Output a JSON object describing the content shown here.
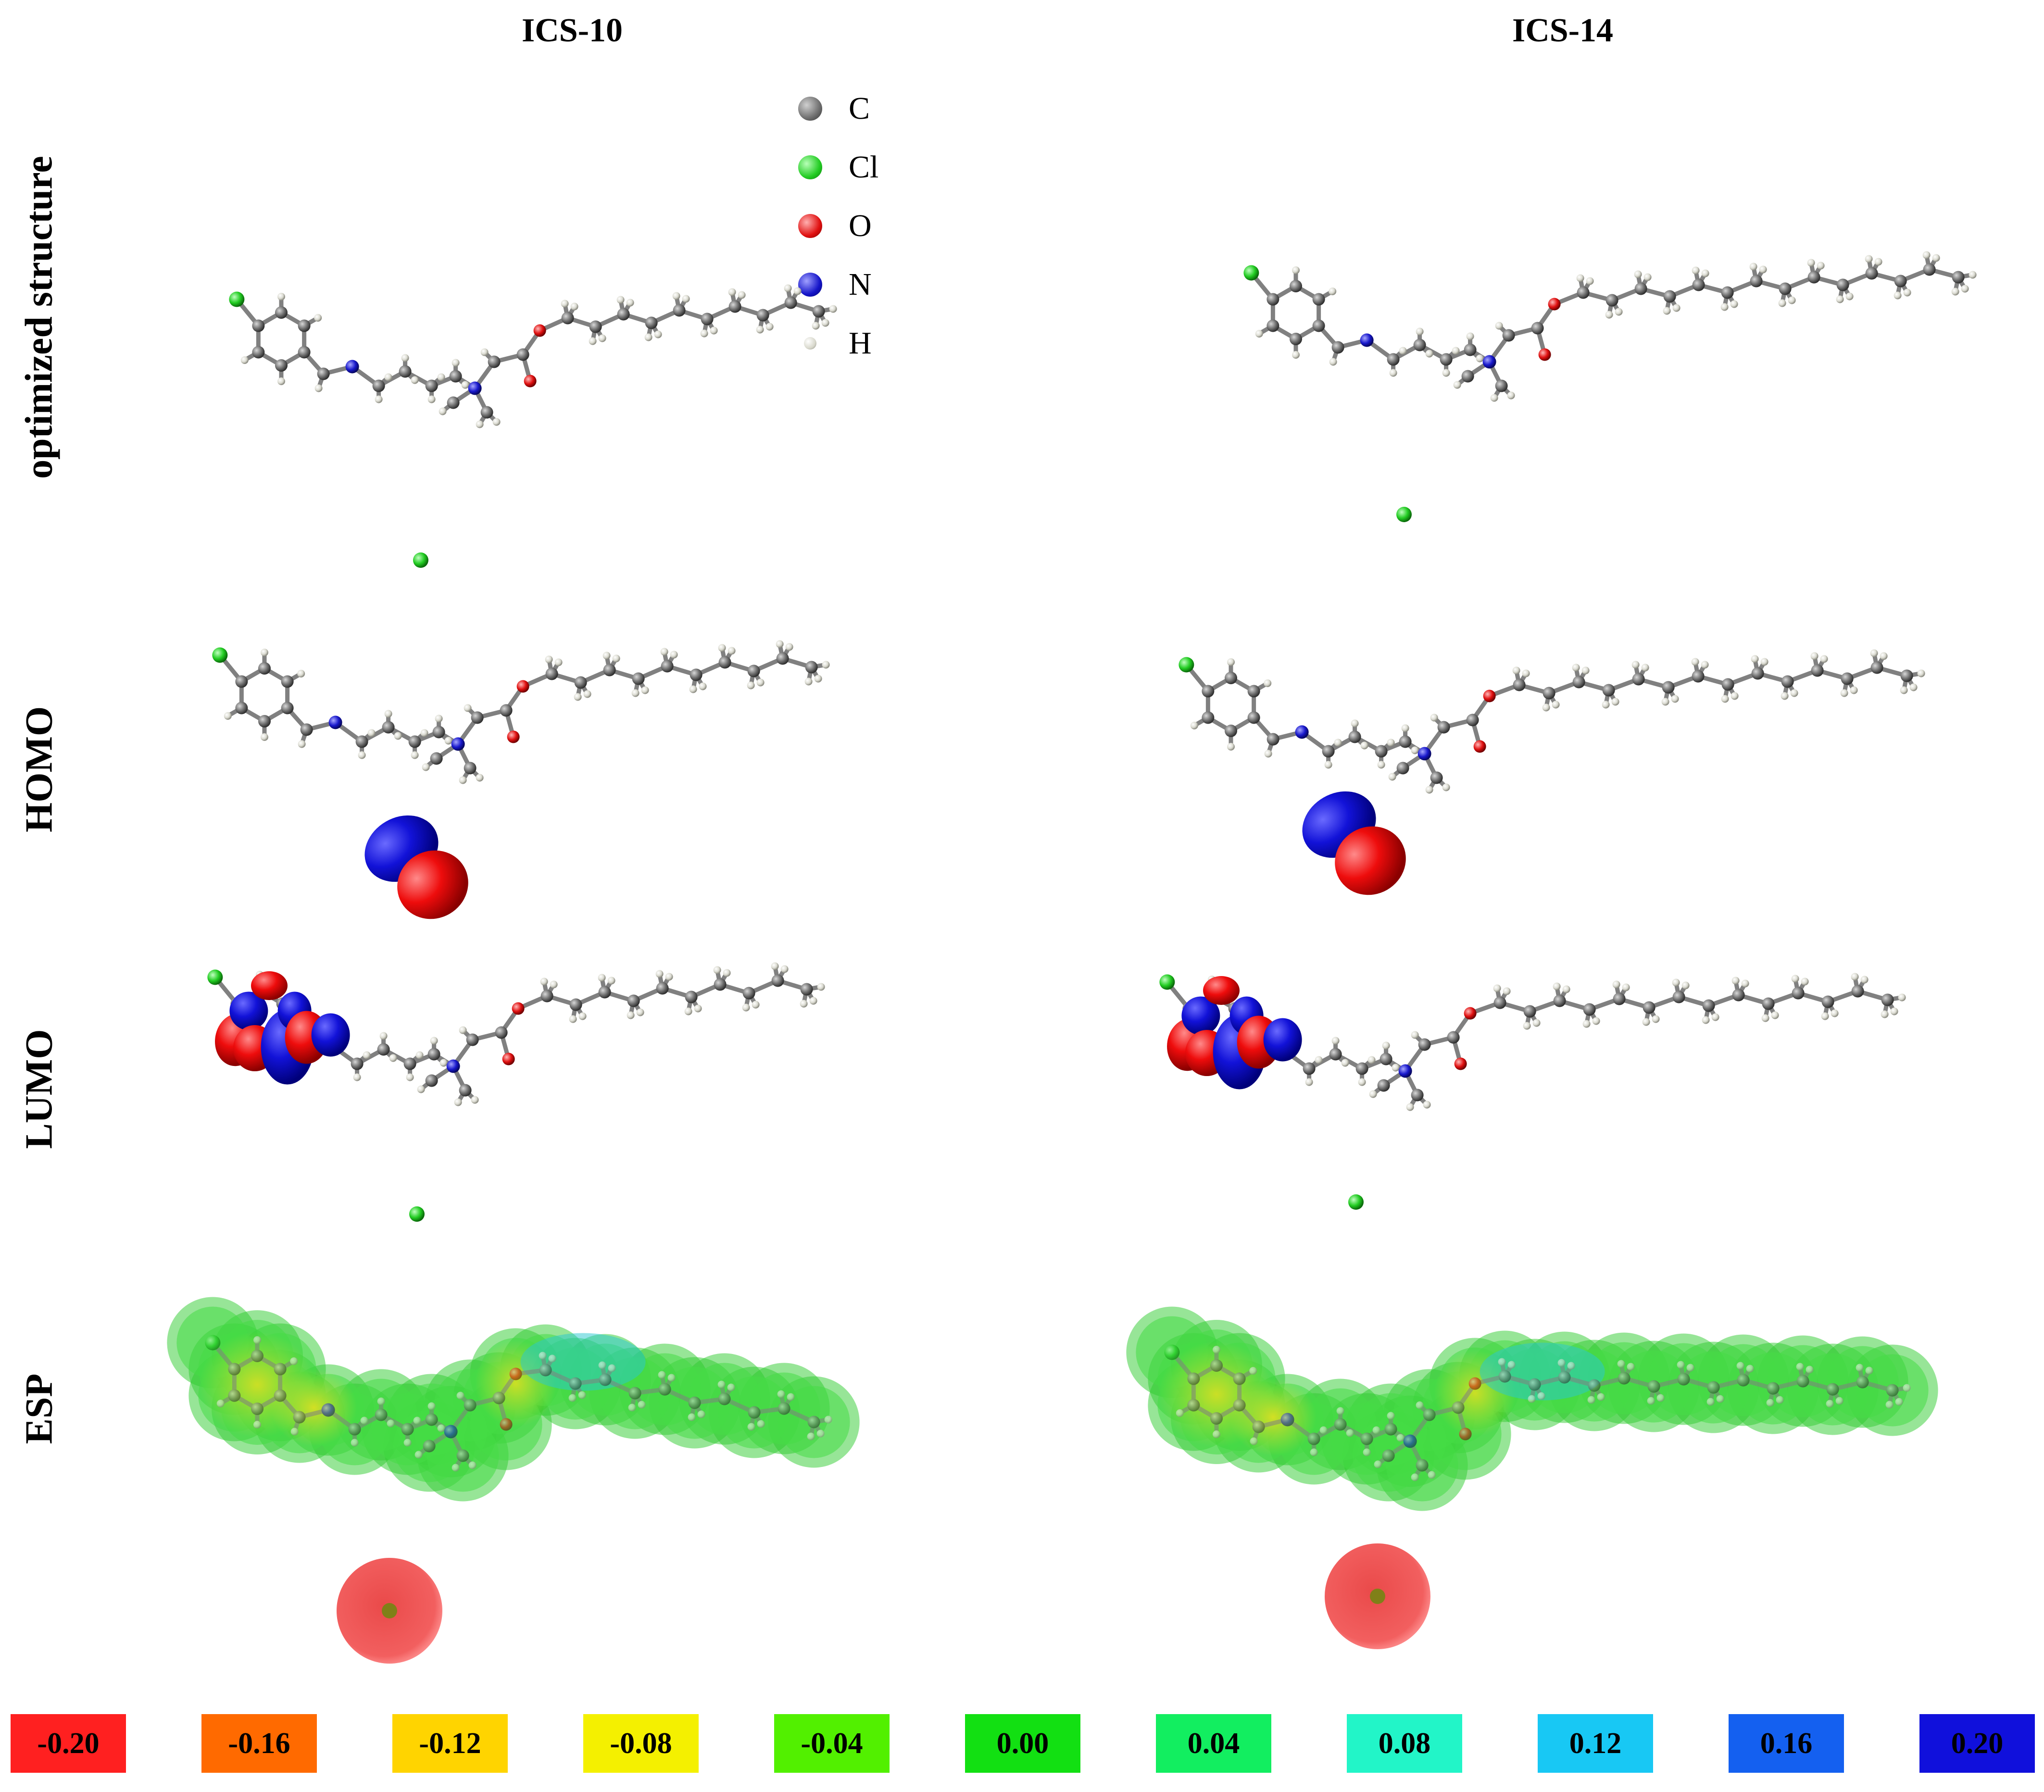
{
  "columns": [
    {
      "title": "ICS-10"
    },
    {
      "title": "ICS-14"
    }
  ],
  "rows": [
    {
      "label": "optimized structure"
    },
    {
      "label": "HOMO"
    },
    {
      "label": "LUMO"
    },
    {
      "label": "ESP"
    }
  ],
  "legend": [
    {
      "label": "C",
      "color": "#6e6e6e",
      "icon": "carbon-atom-icon"
    },
    {
      "label": "Cl",
      "color": "#22cc22",
      "icon": "chlorine-atom-icon"
    },
    {
      "label": "O",
      "color": "#e01010",
      "icon": "oxygen-atom-icon"
    },
    {
      "label": "N",
      "color": "#1414c8",
      "icon": "nitrogen-atom-icon"
    },
    {
      "label": "H",
      "color": "#e8e8e0",
      "icon": "hydrogen-atom-icon"
    }
  ],
  "color_scale": [
    {
      "label": "-0.20",
      "color": "#ff2020"
    },
    {
      "label": "-0.16",
      "color": "#ff6a00"
    },
    {
      "label": "-0.12",
      "color": "#ffd400"
    },
    {
      "label": "-0.08",
      "color": "#f4f000"
    },
    {
      "label": "-0.04",
      "color": "#52f000"
    },
    {
      "label": "0.00",
      "color": "#12e012"
    },
    {
      "label": "0.04",
      "color": "#12ee60"
    },
    {
      "label": "0.08",
      "color": "#22f5c8"
    },
    {
      "label": "0.12",
      "color": "#18c8f4"
    },
    {
      "label": "0.16",
      "color": "#1460f0"
    },
    {
      "label": "0.20",
      "color": "#1010dc"
    }
  ]
}
